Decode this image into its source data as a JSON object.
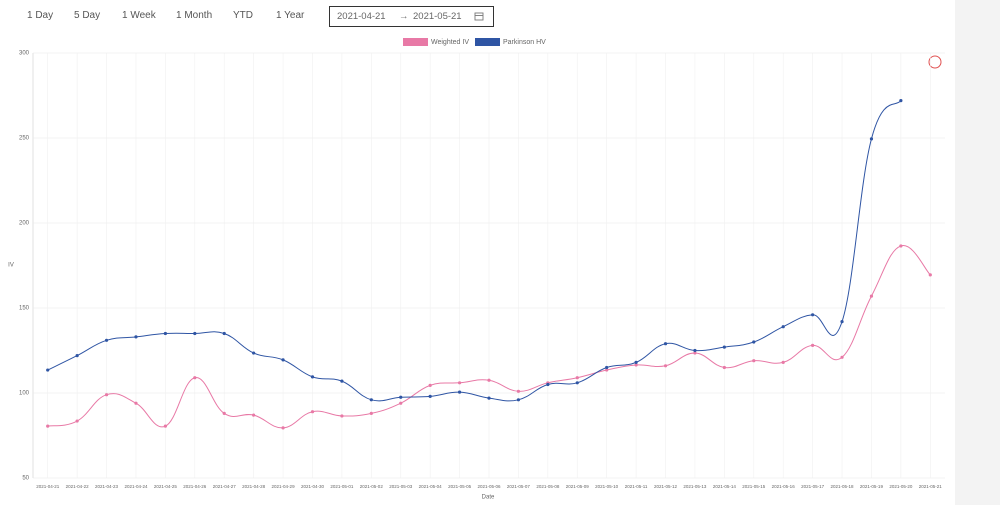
{
  "toolbar": {
    "ranges": [
      "1 Day",
      "5 Day",
      "1 Week",
      "1 Month",
      "YTD",
      "1 Year"
    ],
    "date_range": {
      "start": "2021-04-21",
      "separator": "→",
      "end": "2021-05-21"
    }
  },
  "chart_data": {
    "type": "line",
    "x_label": "Date",
    "y_label": "IV",
    "categories": [
      "2021-04-21",
      "2021-04-22",
      "2021-04-23",
      "2021-04-24",
      "2021-04-25",
      "2021-04-26",
      "2021-04-27",
      "2021-04-28",
      "2021-04-29",
      "2021-04-30",
      "2021-05-01",
      "2021-05-02",
      "2021-05-03",
      "2021-05-04",
      "2021-05-05",
      "2021-05-06",
      "2021-05-07",
      "2021-05-08",
      "2021-05-09",
      "2021-05-10",
      "2021-05-11",
      "2021-05-12",
      "2021-05-13",
      "2021-05-14",
      "2021-05-15",
      "2021-05-16",
      "2021-05-17",
      "2021-05-18",
      "2021-05-19",
      "2021-05-20",
      "2021-05-21"
    ],
    "series": [
      {
        "name": "Weighted IV",
        "color": "#e879a6",
        "values": [
          80.5,
          83.5,
          99,
          94,
          80.5,
          109,
          88,
          87,
          79.5,
          89,
          86.5,
          88,
          94,
          104.5,
          106,
          107.5,
          101,
          106,
          109,
          113.5,
          116.5,
          116,
          123.5,
          115,
          119,
          118,
          128,
          121,
          157,
          186.5,
          169.5
        ]
      },
      {
        "name": "Parkinson HV",
        "color": "#2f55a4",
        "values": [
          113.5,
          122,
          131,
          133,
          135,
          135,
          135,
          123.5,
          119.5,
          109.5,
          107,
          96,
          97.5,
          98,
          100.5,
          97,
          96,
          105,
          106,
          115,
          118,
          129,
          125,
          127,
          130,
          139,
          146,
          142,
          249.5,
          272,
          null
        ]
      }
    ],
    "ylim": [
      50,
      300
    ],
    "yticks": [
      50,
      100,
      150,
      200,
      250,
      300
    ],
    "grid": true
  }
}
